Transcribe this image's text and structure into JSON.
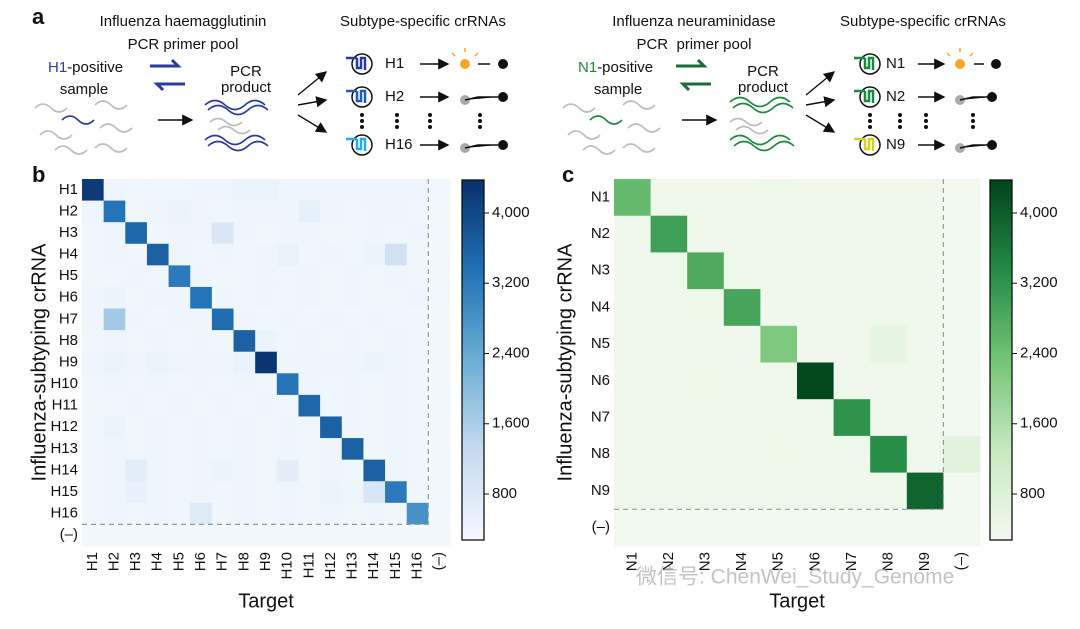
{
  "diagram": {
    "label": "a",
    "left": {
      "primer_pool": [
        "Influenza haemagglutinin",
        "PCR primer pool"
      ],
      "sample_subtype": "H1",
      "sample_text": [
        "-positive",
        "sample"
      ],
      "product": [
        "PCR",
        "product"
      ],
      "crrna_title": "Subtype-specific crRNAs",
      "crrnas": [
        "H1",
        "H2",
        "H16"
      ]
    },
    "right": {
      "primer_pool": [
        "Influenza neuraminidase",
        "PCR  primer pool"
      ],
      "sample_subtype": "N1",
      "sample_text": [
        "-positive",
        "sample"
      ],
      "product": [
        "PCR",
        "product"
      ],
      "crrna_title": "Subtype-specific crRNAs",
      "crrnas": [
        "N1",
        "N2",
        "N9"
      ]
    }
  },
  "watermark": "微信号: ChenWei_Study_Genome",
  "chart_data": [
    {
      "type": "heatmap",
      "label": "b",
      "x_label": "Target",
      "y_label": "Influenza-subtyping crRNA",
      "xcategories": [
        "H1",
        "H2",
        "H3",
        "H4",
        "H5",
        "H6",
        "H7",
        "H8",
        "H9",
        "H10",
        "H11",
        "H12",
        "H13",
        "H14",
        "H15",
        "H16",
        "(–)"
      ],
      "ycategories": [
        "H1",
        "H2",
        "H3",
        "H4",
        "H5",
        "H6",
        "H7",
        "H8",
        "H9",
        "H10",
        "H11",
        "H12",
        "H13",
        "H14",
        "H15",
        "H16",
        "(–)"
      ],
      "values": [
        [
          4200,
          400,
          380,
          390,
          380,
          420,
          400,
          450,
          460,
          420,
          400,
          410,
          420,
          400,
          410,
          430,
          300
        ],
        [
          400,
          3300,
          380,
          400,
          450,
          400,
          380,
          400,
          400,
          420,
          600,
          400,
          380,
          400,
          400,
          380,
          300
        ],
        [
          380,
          400,
          3500,
          380,
          400,
          400,
          850,
          400,
          380,
          400,
          400,
          380,
          380,
          400,
          380,
          400,
          300
        ],
        [
          390,
          400,
          380,
          3600,
          400,
          380,
          400,
          380,
          400,
          520,
          380,
          400,
          380,
          450,
          1100,
          380,
          300
        ],
        [
          380,
          380,
          400,
          380,
          3200,
          400,
          380,
          380,
          400,
          380,
          400,
          380,
          400,
          380,
          400,
          380,
          300
        ],
        [
          400,
          450,
          380,
          420,
          400,
          3300,
          400,
          380,
          400,
          380,
          400,
          380,
          400,
          380,
          380,
          400,
          300
        ],
        [
          400,
          1700,
          400,
          380,
          400,
          400,
          3400,
          400,
          380,
          400,
          380,
          400,
          380,
          400,
          380,
          380,
          300
        ],
        [
          380,
          400,
          380,
          400,
          380,
          400,
          380,
          3600,
          480,
          380,
          400,
          380,
          400,
          380,
          400,
          380,
          300
        ],
        [
          420,
          450,
          420,
          480,
          440,
          420,
          400,
          500,
          4300,
          400,
          420,
          400,
          420,
          460,
          400,
          380,
          300
        ],
        [
          380,
          400,
          380,
          400,
          380,
          400,
          380,
          400,
          380,
          3300,
          400,
          380,
          400,
          380,
          400,
          380,
          300
        ],
        [
          380,
          380,
          400,
          380,
          400,
          380,
          400,
          380,
          400,
          380,
          3500,
          380,
          400,
          380,
          400,
          380,
          300
        ],
        [
          380,
          450,
          380,
          400,
          380,
          400,
          380,
          400,
          380,
          400,
          380,
          3600,
          400,
          380,
          400,
          380,
          300
        ],
        [
          380,
          400,
          380,
          400,
          380,
          400,
          380,
          400,
          380,
          400,
          380,
          400,
          3600,
          380,
          400,
          380,
          300
        ],
        [
          380,
          400,
          700,
          400,
          380,
          400,
          480,
          400,
          380,
          650,
          380,
          400,
          380,
          3600,
          400,
          380,
          300
        ],
        [
          380,
          400,
          550,
          400,
          380,
          400,
          380,
          400,
          380,
          400,
          380,
          450,
          400,
          900,
          3200,
          380,
          300
        ],
        [
          380,
          400,
          380,
          400,
          380,
          800,
          380,
          400,
          380,
          400,
          380,
          400,
          380,
          400,
          380,
          2800,
          300
        ],
        [
          300,
          300,
          300,
          300,
          300,
          300,
          300,
          300,
          300,
          300,
          300,
          300,
          300,
          300,
          300,
          300,
          300
        ]
      ],
      "colormap": [
        "#f4f9fe",
        "#c6dbef",
        "#6baed6",
        "#2171b5",
        "#08306b"
      ],
      "clim": [
        276,
        4376
      ],
      "cticks": [
        800,
        {
          "value": 1600,
          "label": "1,600"
        },
        {
          "value": 2400,
          "label": "2,400"
        },
        {
          "value": 3200,
          "label": "3,200"
        },
        {
          "value": 4000,
          "label": "4,000"
        }
      ]
    },
    {
      "type": "heatmap",
      "label": "c",
      "x_label": "Target",
      "y_label": "Influenza-subtyping crRNA",
      "xcategories": [
        "N1",
        "N2",
        "N3",
        "N4",
        "N5",
        "N6",
        "N7",
        "N8",
        "N9",
        "(–)"
      ],
      "ycategories": [
        "N1",
        "N2",
        "N3",
        "N4",
        "N5",
        "N6",
        "N7",
        "N8",
        "N9",
        "(–)"
      ],
      "values": [
        [
          2500,
          380,
          380,
          380,
          400,
          380,
          380,
          380,
          380,
          300
        ],
        [
          380,
          3000,
          380,
          380,
          380,
          380,
          380,
          380,
          380,
          300
        ],
        [
          380,
          400,
          2800,
          400,
          380,
          380,
          380,
          380,
          380,
          300
        ],
        [
          380,
          380,
          420,
          2900,
          380,
          380,
          380,
          380,
          380,
          300
        ],
        [
          380,
          380,
          380,
          380,
          2200,
          380,
          380,
          600,
          380,
          300
        ],
        [
          380,
          380,
          420,
          380,
          380,
          4300,
          380,
          380,
          380,
          300
        ],
        [
          380,
          380,
          380,
          380,
          380,
          380,
          3200,
          380,
          380,
          300
        ],
        [
          380,
          380,
          400,
          380,
          420,
          380,
          400,
          3300,
          380,
          700
        ],
        [
          380,
          380,
          380,
          380,
          380,
          380,
          380,
          380,
          3900,
          300
        ],
        [
          300,
          300,
          300,
          300,
          300,
          300,
          300,
          300,
          300,
          300
        ]
      ],
      "colormap": [
        "#f3faf0",
        "#c7e9c0",
        "#74c476",
        "#238b45",
        "#00441b"
      ],
      "clim": [
        276,
        4376
      ],
      "cticks": [
        800,
        {
          "value": 1600,
          "label": "1,600"
        },
        {
          "value": 2400,
          "label": "2,400"
        },
        {
          "value": 3200,
          "label": "3,200"
        },
        {
          "value": 4000,
          "label": "4,000"
        }
      ]
    }
  ]
}
